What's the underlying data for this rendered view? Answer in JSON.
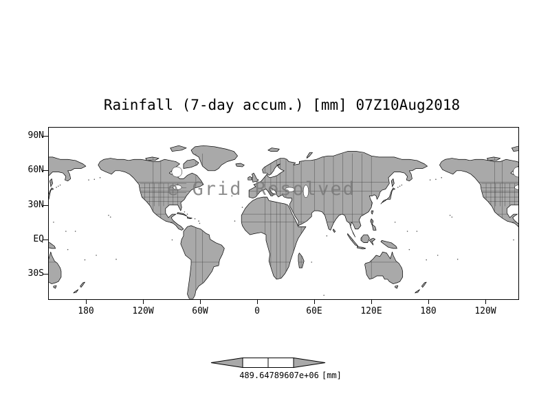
{
  "title": "Rainfall (7-day accum.) [mm] 07Z10Aug2018",
  "watermark": "e Grid Resolved",
  "axes": {
    "y_ticks": [
      "90N",
      "60N",
      "30N",
      "EQ",
      "30S"
    ],
    "x_ticks": [
      "180",
      "120W",
      "60W",
      "0",
      "60E",
      "120E",
      "180",
      "120W"
    ]
  },
  "colorbar": {
    "label": "489.64789607e+06",
    "unit": "[mm]"
  },
  "colors": {
    "land": "#a9a9a9",
    "coastline": "#000000",
    "border": "#3a3a3a",
    "watermark": "#7a7a7a"
  },
  "chart_data": {
    "type": "map",
    "title": "Rainfall (7-day accum.) [mm] 07Z10Aug2018",
    "variable": "Rainfall, 7-day accumulation",
    "units": "mm",
    "valid_time": "07Z 10 Aug 2018",
    "projection": "equirectangular lat/lon; longitude starts near 140E and wraps past 120W so North America repeats at the right edge",
    "lat_tick_labels": [
      "90N",
      "60N",
      "30N",
      "EQ",
      "30S"
    ],
    "lon_tick_labels": [
      "180",
      "120W",
      "60W",
      "0",
      "60E",
      "120E",
      "180",
      "120W"
    ],
    "lat_range_visible": [
      "~52S",
      "~95N"
    ],
    "shading": "land masses filled uniform gray with black coastlines and thin political borders; ocean white; no rainfall contour shading discernible",
    "colorbar": {
      "style": "horizontal bar with gray triangular end arrows and two white middle segments",
      "label_text": "489.64789607e+06",
      "unit": "[mm]"
    },
    "watermark": "e Grid Resolved"
  }
}
